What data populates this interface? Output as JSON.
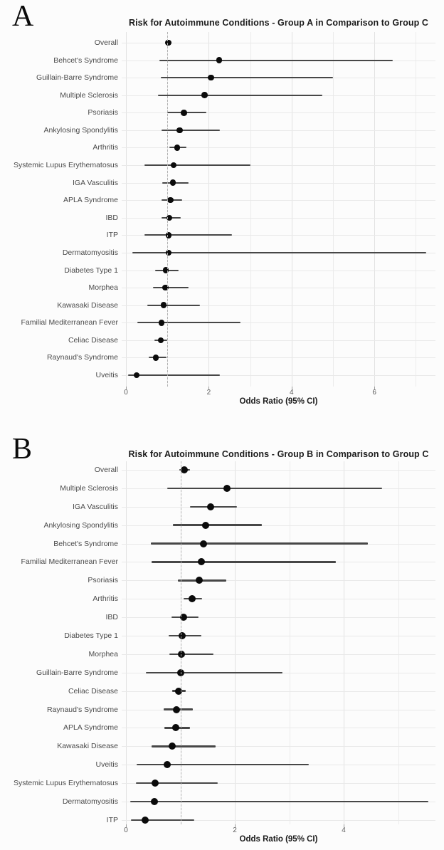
{
  "chart_data": [
    {
      "type": "forest",
      "panel": "A",
      "title": "Risk for Autoimmune Conditions - Group A in Comparison to Group C",
      "xlabel": "Odds Ratio (95% CI)",
      "xticks": [
        0,
        2,
        4,
        6
      ],
      "xlim": [
        -0.1,
        7.5
      ],
      "refline": 1,
      "grid": "on",
      "rows": [
        {
          "label": "Overall",
          "or": 1.02,
          "lo": 0.95,
          "hi": 1.1
        },
        {
          "label": "Behcet's Syndrome",
          "or": 2.25,
          "lo": 0.8,
          "hi": 6.45
        },
        {
          "label": "Guillain-Barre Syndrome",
          "or": 2.05,
          "lo": 0.85,
          "hi": 5.0
        },
        {
          "label": "Multiple Sclerosis",
          "or": 1.9,
          "lo": 0.78,
          "hi": 4.75
        },
        {
          "label": "Psoriasis",
          "or": 1.4,
          "lo": 1.0,
          "hi": 1.95
        },
        {
          "label": "Ankylosing Spondylitis",
          "or": 1.3,
          "lo": 0.86,
          "hi": 2.27
        },
        {
          "label": "Arthritis",
          "or": 1.24,
          "lo": 1.05,
          "hi": 1.46
        },
        {
          "label": "Systemic Lupus Erythematosus",
          "or": 1.15,
          "lo": 0.45,
          "hi": 3.0
        },
        {
          "label": "IGA Vasculitis",
          "or": 1.13,
          "lo": 0.88,
          "hi": 1.51
        },
        {
          "label": "APLA Syndrome",
          "or": 1.07,
          "lo": 0.86,
          "hi": 1.36
        },
        {
          "label": "IBD",
          "or": 1.05,
          "lo": 0.86,
          "hi": 1.32
        },
        {
          "label": "ITP",
          "or": 1.03,
          "lo": 0.45,
          "hi": 2.56
        },
        {
          "label": "Dermatomyositis",
          "or": 1.03,
          "lo": 0.15,
          "hi": 7.25
        },
        {
          "label": "Diabetes Type 1",
          "or": 0.96,
          "lo": 0.7,
          "hi": 1.28
        },
        {
          "label": "Morphea",
          "or": 0.95,
          "lo": 0.65,
          "hi": 1.51
        },
        {
          "label": "Kawasaki Disease",
          "or": 0.91,
          "lo": 0.52,
          "hi": 1.79
        },
        {
          "label": "Familial Mediterranean Fever",
          "or": 0.86,
          "lo": 0.27,
          "hi": 2.77
        },
        {
          "label": "Celiac Disease",
          "or": 0.84,
          "lo": 0.69,
          "hi": 1.0
        },
        {
          "label": "Raynaud's Syndrome",
          "or": 0.72,
          "lo": 0.55,
          "hi": 0.98
        },
        {
          "label": "Uveitis",
          "or": 0.26,
          "lo": 0.05,
          "hi": 2.27
        }
      ]
    },
    {
      "type": "forest",
      "panel": "B",
      "title": "Risk for Autoimmune Conditions - Group B in Comparison to Group C",
      "xlabel": "Odds Ratio (95% CI)",
      "xticks": [
        0,
        2,
        4
      ],
      "xlim": [
        -0.1,
        5.7
      ],
      "refline": 1,
      "grid": "on",
      "rows": [
        {
          "label": "Overall",
          "or": 1.07,
          "lo": 0.98,
          "hi": 1.17
        },
        {
          "label": "Multiple Sclerosis",
          "or": 1.85,
          "lo": 0.76,
          "hi": 4.7
        },
        {
          "label": "IGA Vasculitis",
          "or": 1.55,
          "lo": 1.18,
          "hi": 2.04
        },
        {
          "label": "Ankylosing Spondylitis",
          "or": 1.46,
          "lo": 0.86,
          "hi": 2.5
        },
        {
          "label": "Behcet's Syndrome",
          "or": 1.42,
          "lo": 0.46,
          "hi": 4.45
        },
        {
          "label": "Familial Mediterranean Fever",
          "or": 1.38,
          "lo": 0.47,
          "hi": 3.85
        },
        {
          "label": "Psoriasis",
          "or": 1.35,
          "lo": 0.96,
          "hi": 1.84
        },
        {
          "label": "Arthritis",
          "or": 1.22,
          "lo": 1.06,
          "hi": 1.4
        },
        {
          "label": "IBD",
          "or": 1.06,
          "lo": 0.84,
          "hi": 1.33
        },
        {
          "label": "Diabetes Type 1",
          "or": 1.03,
          "lo": 0.78,
          "hi": 1.38
        },
        {
          "label": "Morphea",
          "or": 1.02,
          "lo": 0.8,
          "hi": 1.61
        },
        {
          "label": "Guillain-Barre Syndrome",
          "or": 1.01,
          "lo": 0.37,
          "hi": 2.88
        },
        {
          "label": "Celiac Disease",
          "or": 0.97,
          "lo": 0.85,
          "hi": 1.1
        },
        {
          "label": "Raynaud's Syndrome",
          "or": 0.93,
          "lo": 0.69,
          "hi": 1.23
        },
        {
          "label": "APLA Syndrome",
          "or": 0.92,
          "lo": 0.71,
          "hi": 1.18
        },
        {
          "label": "Kawasaki Disease",
          "or": 0.85,
          "lo": 0.47,
          "hi": 1.65
        },
        {
          "label": "Uveitis",
          "or": 0.76,
          "lo": 0.2,
          "hi": 3.36
        },
        {
          "label": "Systemic Lupus Erythematosus",
          "or": 0.53,
          "lo": 0.18,
          "hi": 1.69
        },
        {
          "label": "Dermatomyositis",
          "or": 0.52,
          "lo": 0.08,
          "hi": 5.55
        },
        {
          "label": "ITP",
          "or": 0.35,
          "lo": 0.09,
          "hi": 1.25
        }
      ]
    }
  ]
}
